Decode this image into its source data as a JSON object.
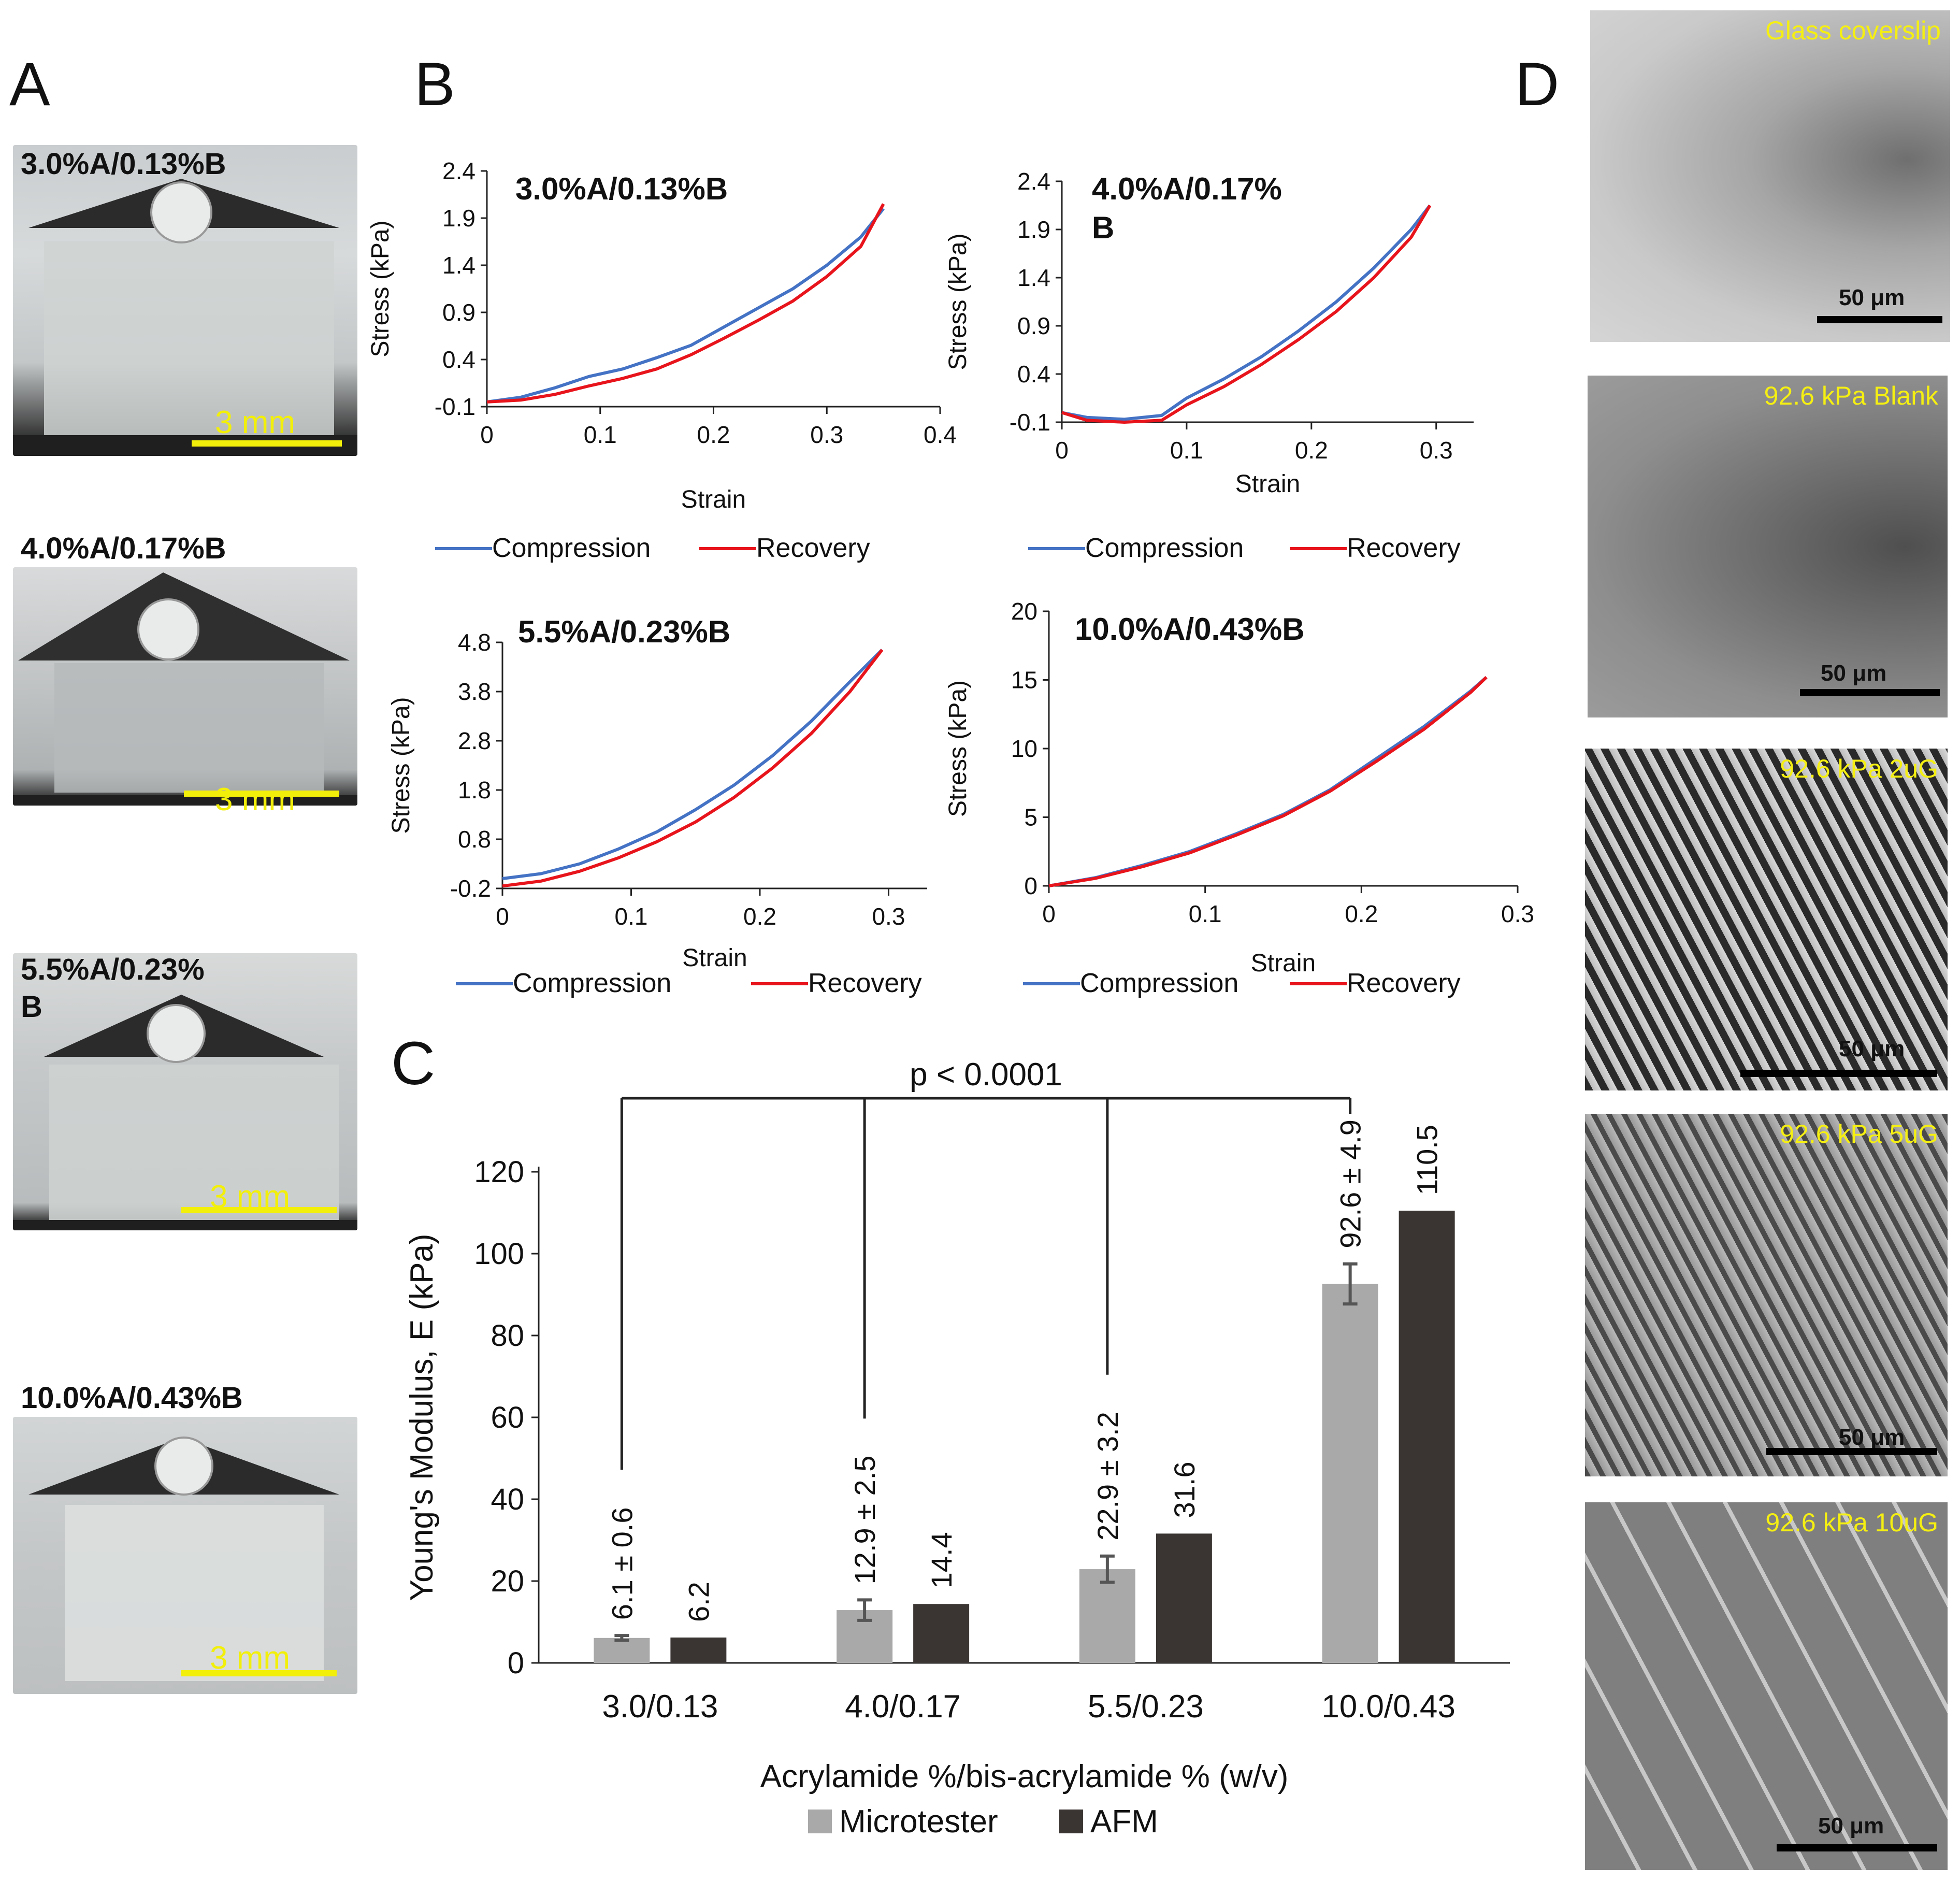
{
  "panel_letters": {
    "a": "A",
    "b": "B",
    "c": "C",
    "d": "D"
  },
  "panel_a": {
    "items": [
      {
        "label": "3.0%A/0.13%B",
        "scale": "3 mm"
      },
      {
        "label": "4.0%A/0.17%B",
        "scale": "3 mm"
      },
      {
        "label_line1": "5.5%A/0.23%",
        "label_line2": "B",
        "scale": "3 mm"
      },
      {
        "label": "10.0%A/0.43%B",
        "scale": "3 mm"
      }
    ]
  },
  "panel_d": {
    "items": [
      {
        "title": "Glass coverslip",
        "scale": "50 μm"
      },
      {
        "title": "92.6 kPa Blank",
        "scale": "50 μm"
      },
      {
        "title": "92.6 kPa 2uG",
        "scale": "50 μm"
      },
      {
        "title": "92.6 kPa 5uG",
        "scale": "50 μm"
      },
      {
        "title": "92.6 kPa 10uG",
        "scale": "50 μm"
      }
    ]
  },
  "colors": {
    "compression": "#4472c4",
    "recovery": "#e8141c",
    "microtester": "#a9a9a9",
    "afm": "#3a3533",
    "scale_yellow": "#f2ef0a"
  },
  "chart_data": [
    {
      "type": "line",
      "title": "3.0%A/0.13%B",
      "xlabel": "Strain",
      "ylabel": "Stress (kPa)",
      "xlim": [
        0,
        0.4
      ],
      "ylim": [
        -0.1,
        2.4
      ],
      "xticks": [
        "0",
        "0.1",
        "0.2",
        "0.3",
        "0.4"
      ],
      "yticks": [
        "-0.1",
        "0.4",
        "0.9",
        "1.4",
        "1.9",
        "2.4"
      ],
      "legend": [
        "Compression",
        "Recovery"
      ],
      "series": [
        {
          "name": "Compression",
          "x": [
            0,
            0.03,
            0.06,
            0.09,
            0.12,
            0.15,
            0.18,
            0.21,
            0.24,
            0.27,
            0.3,
            0.33,
            0.35
          ],
          "y": [
            -0.05,
            0.0,
            0.1,
            0.22,
            0.3,
            0.42,
            0.55,
            0.75,
            0.95,
            1.15,
            1.4,
            1.7,
            2.0
          ]
        },
        {
          "name": "Recovery",
          "x": [
            0,
            0.03,
            0.06,
            0.09,
            0.12,
            0.15,
            0.18,
            0.21,
            0.24,
            0.27,
            0.3,
            0.33,
            0.35
          ],
          "y": [
            -0.05,
            -0.03,
            0.03,
            0.12,
            0.2,
            0.3,
            0.45,
            0.63,
            0.82,
            1.02,
            1.28,
            1.6,
            2.05
          ]
        }
      ]
    },
    {
      "type": "line",
      "title_line1": "4.0%A/0.17%",
      "title_line2": "B",
      "xlabel": "Strain",
      "ylabel": "Stress (kPa)",
      "xlim": [
        0,
        0.33
      ],
      "ylim": [
        -0.1,
        2.4
      ],
      "xticks": [
        "0",
        "0.1",
        "0.2",
        "0.3"
      ],
      "yticks": [
        "-0.1",
        "0.4",
        "0.9",
        "1.4",
        "1.9",
        "2.4"
      ],
      "legend": [
        "Compression",
        "Recovery"
      ],
      "series": [
        {
          "name": "Compression",
          "x": [
            0,
            0.02,
            0.05,
            0.08,
            0.1,
            0.13,
            0.16,
            0.19,
            0.22,
            0.25,
            0.28,
            0.295
          ],
          "y": [
            0.0,
            -0.05,
            -0.07,
            -0.03,
            0.15,
            0.35,
            0.58,
            0.85,
            1.15,
            1.5,
            1.9,
            2.15
          ]
        },
        {
          "name": "Recovery",
          "x": [
            0,
            0.02,
            0.05,
            0.08,
            0.1,
            0.13,
            0.16,
            0.19,
            0.22,
            0.25,
            0.28,
            0.295
          ],
          "y": [
            0.0,
            -0.08,
            -0.1,
            -0.08,
            0.08,
            0.27,
            0.5,
            0.76,
            1.05,
            1.4,
            1.82,
            2.15
          ]
        }
      ]
    },
    {
      "type": "line",
      "title": "5.5%A/0.23%B",
      "xlabel": "Strain",
      "ylabel": "Stress (kPa)",
      "xlim": [
        0,
        0.33
      ],
      "ylim": [
        -0.2,
        4.8
      ],
      "xticks": [
        "0",
        "0.1",
        "0.2",
        "0.3"
      ],
      "yticks": [
        "-0.2",
        "0.8",
        "1.8",
        "2.8",
        "3.8",
        "4.8"
      ],
      "legend": [
        "Compression",
        "Recovery"
      ],
      "series": [
        {
          "name": "Compression",
          "x": [
            0,
            0.03,
            0.06,
            0.09,
            0.12,
            0.15,
            0.18,
            0.21,
            0.24,
            0.27,
            0.295
          ],
          "y": [
            0.0,
            0.1,
            0.3,
            0.6,
            0.95,
            1.4,
            1.9,
            2.5,
            3.2,
            4.0,
            4.65
          ]
        },
        {
          "name": "Recovery",
          "x": [
            0,
            0.03,
            0.06,
            0.09,
            0.12,
            0.15,
            0.18,
            0.21,
            0.24,
            0.27,
            0.295
          ],
          "y": [
            -0.15,
            -0.05,
            0.15,
            0.42,
            0.75,
            1.15,
            1.65,
            2.25,
            2.95,
            3.8,
            4.65
          ]
        }
      ]
    },
    {
      "type": "line",
      "title": "10.0%A/0.43%B",
      "xlabel": "Strain",
      "ylabel": "Stress (kPa)",
      "xlim": [
        0,
        0.3
      ],
      "ylim": [
        0,
        20
      ],
      "xticks": [
        "0",
        "0.1",
        "0.2",
        "0.3"
      ],
      "yticks": [
        "0",
        "5",
        "10",
        "15",
        "20"
      ],
      "legend": [
        "Compression",
        "Recovery"
      ],
      "series": [
        {
          "name": "Compression",
          "x": [
            0,
            0.03,
            0.06,
            0.09,
            0.12,
            0.15,
            0.18,
            0.21,
            0.24,
            0.27,
            0.28
          ],
          "y": [
            0,
            0.6,
            1.5,
            2.5,
            3.8,
            5.2,
            7.0,
            9.3,
            11.6,
            14.2,
            15.2
          ]
        },
        {
          "name": "Recovery",
          "x": [
            0,
            0.03,
            0.06,
            0.09,
            0.12,
            0.15,
            0.18,
            0.21,
            0.24,
            0.27,
            0.28
          ],
          "y": [
            0,
            0.55,
            1.4,
            2.4,
            3.7,
            5.1,
            6.9,
            9.1,
            11.4,
            14.1,
            15.2
          ]
        }
      ]
    },
    {
      "type": "bar",
      "xlabel": "Acrylamide %/bis-acrylamide % (w/v)",
      "ylabel": "Young's Modulus, E (kPa)",
      "ylim": [
        0,
        120
      ],
      "yticks": [
        "0",
        "20",
        "40",
        "60",
        "80",
        "100",
        "120"
      ],
      "categories": [
        "3.0/0.13",
        "4.0/0.17",
        "5.5/0.23",
        "10.0/0.43"
      ],
      "series": [
        {
          "name": "Microtester",
          "values": [
            6.1,
            12.9,
            22.9,
            92.6
          ],
          "errors": [
            0.6,
            2.5,
            3.2,
            4.9
          ],
          "labels": [
            "6.1 ± 0.6",
            "12.9 ± 2.5",
            "22.9 ± 3.2",
            "92.6 ± 4.9"
          ]
        },
        {
          "name": "AFM",
          "values": [
            6.2,
            14.4,
            31.6,
            110.5
          ],
          "labels": [
            "6.2",
            "14.4",
            "31.6",
            "110.5"
          ]
        }
      ],
      "significance": "p < 0.0001"
    }
  ]
}
